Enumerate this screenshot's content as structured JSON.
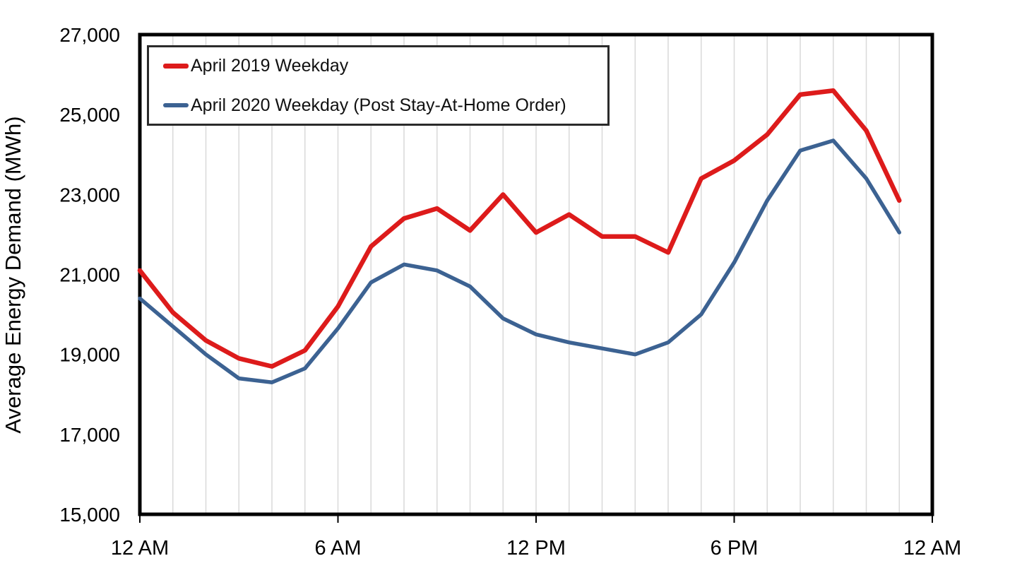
{
  "chart_data": {
    "type": "line",
    "title": "",
    "ylabel": "Average Energy Demand (MWh)",
    "xlabel": "",
    "x_hours": [
      0,
      1,
      2,
      3,
      4,
      5,
      6,
      7,
      8,
      9,
      10,
      11,
      12,
      13,
      14,
      15,
      16,
      17,
      18,
      19,
      20,
      21,
      22,
      23
    ],
    "x_range_hours": [
      0,
      24
    ],
    "x_tick_positions_hours": [
      0,
      6,
      12,
      18,
      24
    ],
    "x_tick_labels": [
      "12 AM",
      "6 AM",
      "12 PM",
      "6 PM",
      "12 AM"
    ],
    "ylim": [
      15000,
      27000
    ],
    "y_ticks": [
      15000,
      17000,
      19000,
      21000,
      23000,
      25000,
      27000
    ],
    "y_tick_labels": [
      "15,000",
      "17,000",
      "19,000",
      "21,000",
      "23,000",
      "25,000",
      "27,000"
    ],
    "grid": "vertical gridline every hour, no horizontal gridlines",
    "legend_position": "top-left",
    "series": [
      {
        "name": "April 2019 Weekday",
        "color": "#dd1b1b",
        "stroke_width": 6.5,
        "values": [
          21100,
          20050,
          19350,
          18900,
          18700,
          19100,
          20200,
          21700,
          22400,
          22650,
          22100,
          23000,
          22050,
          22500,
          21950,
          21950,
          21550,
          23400,
          23850,
          24500,
          25500,
          25600,
          24600,
          22850
        ]
      },
      {
        "name": "April 2020 Weekday (Post Stay-At-Home Order)",
        "color": "#3c6292",
        "stroke_width": 5.5,
        "values": [
          20400,
          19700,
          19000,
          18400,
          18300,
          18650,
          19650,
          20800,
          21250,
          21100,
          20700,
          19900,
          19500,
          19300,
          19150,
          19000,
          19300,
          20000,
          21300,
          22850,
          24100,
          24350,
          23400,
          22050
        ]
      }
    ],
    "colors": {
      "grid": "#d9d9d9",
      "axis": "#000000",
      "text": "#000000",
      "background": "#ffffff",
      "legend_border": "#2b2b2b"
    }
  }
}
